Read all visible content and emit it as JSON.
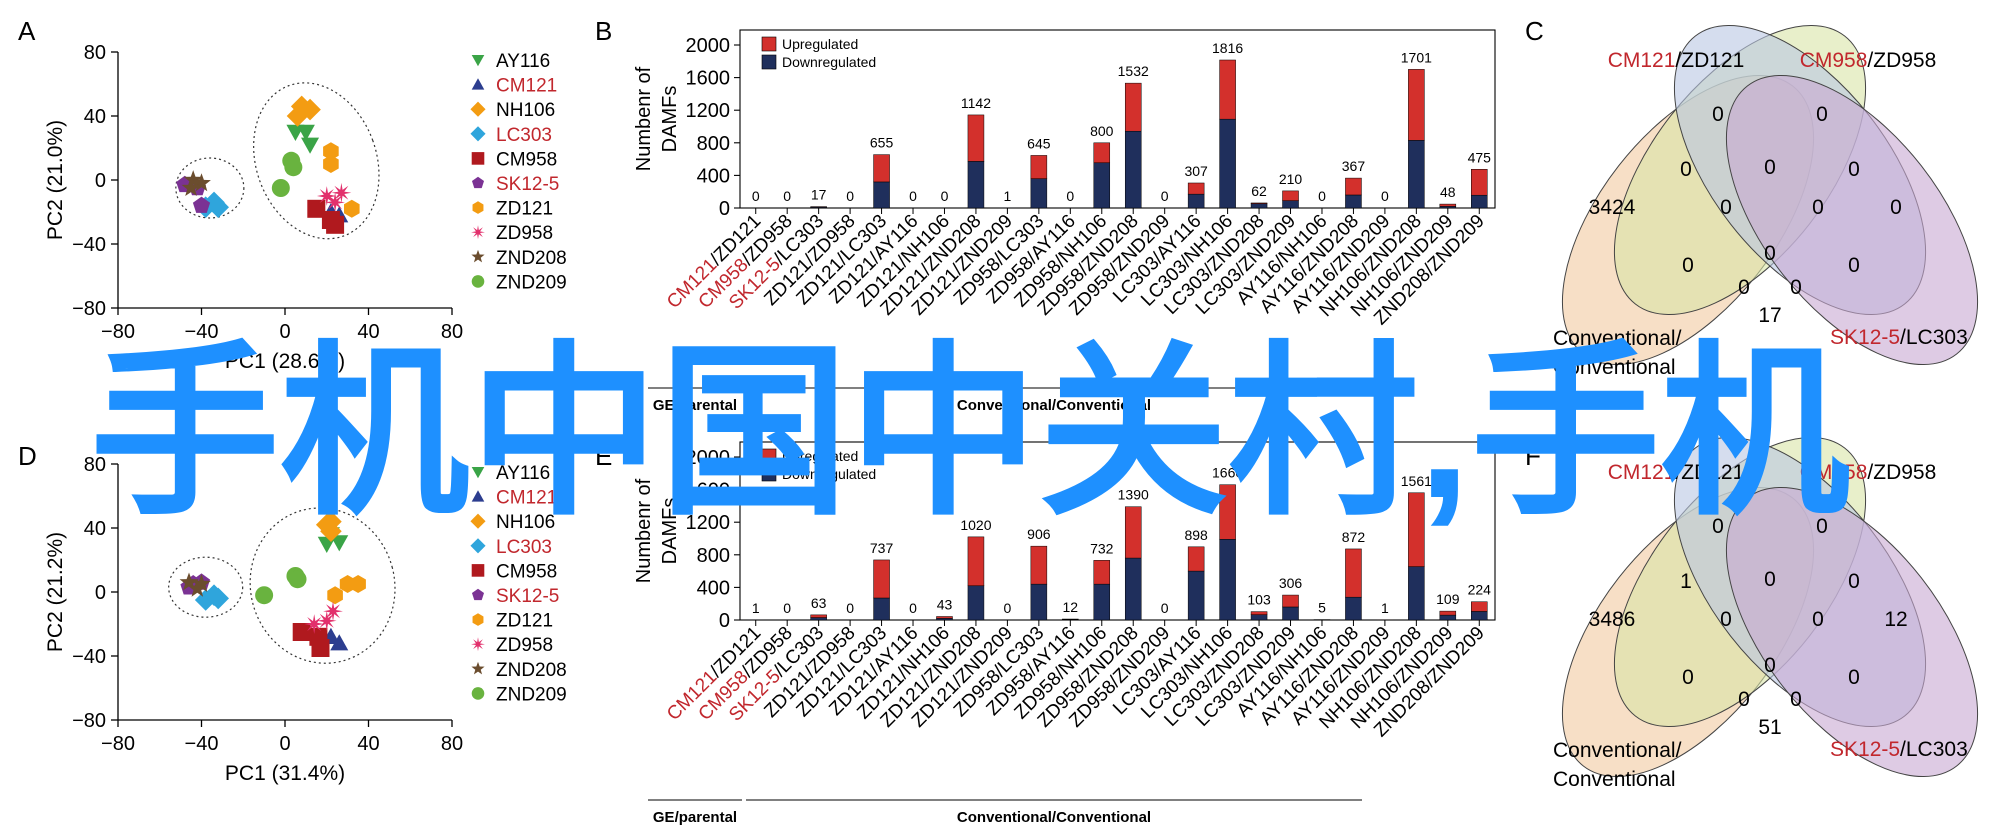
{
  "colors": {
    "upregulated": "#d3302c",
    "downregulated": "#1f2f5c",
    "red_label": "#c1272d",
    "watermark": "#1e90ff",
    "venn": [
      "#f2c9a0",
      "#d9e4a6",
      "#b9c6e2",
      "#c8a8d2"
    ]
  },
  "watermark": {
    "text": "手机中国中关村,手机"
  },
  "panels": {
    "A": {
      "label": "A",
      "xlabel": "PC1 (28.6%)",
      "ylabel": "PC2 (21.0%)",
      "xlim": [
        -80,
        80
      ],
      "ylim": [
        -80,
        80
      ],
      "xticks": [
        "−80",
        "−40",
        "0",
        "40",
        "80"
      ],
      "yticks": [
        "80",
        "40",
        "0",
        "−40",
        "−80"
      ]
    },
    "B": {
      "label": "B",
      "ylabel1": "Numbenr of",
      "ylabel2": "DAMFs",
      "yticks": [
        "2000",
        "1600",
        "1200",
        "800",
        "400",
        "0"
      ]
    },
    "C": {
      "label": "C"
    },
    "D": {
      "label": "D",
      "xlabel": "PC1 (31.4%)",
      "ylabel": "PC2 (21.2%)",
      "xlim": [
        -80,
        80
      ],
      "ylim": [
        -80,
        80
      ],
      "xticks": [
        "−80",
        "−40",
        "0",
        "40",
        "80"
      ],
      "yticks": [
        "80",
        "40",
        "0",
        "−40",
        "−80"
      ]
    },
    "E": {
      "label": "E",
      "ylabel1": "Numbenr of",
      "ylabel2": "DAMFs",
      "yticks": [
        "2000",
        "1600",
        "1200",
        "800",
        "400",
        "0"
      ]
    },
    "F": {
      "label": "F"
    }
  },
  "legend_pca": [
    {
      "name": "AY116",
      "marker": "triangle-down",
      "color": "#3aa447",
      "red": false
    },
    {
      "name": "CM121",
      "marker": "triangle-up",
      "color": "#2c3d8f",
      "red": true
    },
    {
      "name": "NH106",
      "marker": "diamond",
      "color": "#f39c12",
      "red": false
    },
    {
      "name": "LC303",
      "marker": "diamond",
      "color": "#2fa5dc",
      "red": true
    },
    {
      "name": "CM958",
      "marker": "square",
      "color": "#b0191e",
      "red": false
    },
    {
      "name": "SK12-5",
      "marker": "pentagon",
      "color": "#7b3294",
      "red": true
    },
    {
      "name": "ZD121",
      "marker": "hexagon",
      "color": "#f39c12",
      "red": false
    },
    {
      "name": "ZD958",
      "marker": "cross",
      "color": "#e2306c",
      "red": false
    },
    {
      "name": "ZND208",
      "marker": "star",
      "color": "#6b4d2e",
      "red": false
    },
    {
      "name": "ZND209",
      "marker": "circle",
      "color": "#69b33f",
      "red": false
    }
  ],
  "legend_bar": {
    "up": "Upregulated",
    "down": "Downregulated"
  },
  "bar_categories": [
    "CM121/ZD121",
    "CM958/ZD958",
    "SK12-5/LC303",
    "ZD121/ZD958",
    "ZD121/LC303",
    "ZD121/AY116",
    "ZD121/NH106",
    "ZD121/ZND208",
    "ZD121/ZND209",
    "ZD958/LC303",
    "ZD958/AY116",
    "ZD958/NH106",
    "ZD958/ZND208",
    "ZD958/ZND209",
    "LC303/AY116",
    "LC303/NH106",
    "LC303/ZND208",
    "LC303/ZND209",
    "AY116/NH106",
    "AY116/ZND208",
    "AY116/ZND209",
    "NH106/ZND208",
    "NH106/ZND209",
    "ZND208/ZND209"
  ],
  "bar_red_prefix": [
    {
      "index": 0,
      "red": "CM121",
      "rest": "/ZD121"
    },
    {
      "index": 1,
      "red": "CM958",
      "rest": "/ZD958"
    },
    {
      "index": 2,
      "red": "SK12-5",
      "rest": "/LC303"
    }
  ],
  "bar_groups": {
    "left": "GE/parental",
    "right": "Conventional/Conventional"
  },
  "venn_labels": {
    "top_left_red": "CM121",
    "top_left_rest": "/ZD121",
    "top_right_red": "CM958",
    "top_right_rest": "/ZD958",
    "bottom_left_1": "Conventional/",
    "bottom_left_2": "Conventional",
    "bottom_right_red": "SK12-5",
    "bottom_right_rest": "/LC303"
  },
  "chart_data": [
    {
      "panel": "A",
      "type": "scatter",
      "title": "",
      "xlabel": "PC1 (28.6%)",
      "ylabel": "PC2 (21.0%)",
      "xlim": [
        -80,
        80
      ],
      "ylim": [
        -80,
        80
      ],
      "series": [
        {
          "name": "AY116",
          "points": [
            [
              5,
              30
            ],
            [
              10,
              30
            ],
            [
              12,
              22
            ]
          ]
        },
        {
          "name": "CM121",
          "points": [
            [
              22,
              -20
            ],
            [
              26,
              -22
            ]
          ]
        },
        {
          "name": "NH106",
          "points": [
            [
              8,
              46
            ],
            [
              12,
              44
            ],
            [
              6,
              40
            ]
          ]
        },
        {
          "name": "LC303",
          "points": [
            [
              -38,
              -17
            ],
            [
              -32,
              -17
            ],
            [
              -34,
              -14
            ]
          ]
        },
        {
          "name": "CM958",
          "points": [
            [
              15,
              -18
            ],
            [
              22,
              -25
            ],
            [
              24,
              -28
            ]
          ]
        },
        {
          "name": "SK12-5",
          "points": [
            [
              -42,
              -5
            ],
            [
              -48,
              -3
            ],
            [
              -40,
              -16
            ]
          ]
        },
        {
          "name": "ZD121",
          "points": [
            [
              22,
              10
            ],
            [
              22,
              18
            ],
            [
              32,
              -18
            ]
          ]
        },
        {
          "name": "ZD958",
          "points": [
            [
              20,
              -10
            ],
            [
              24,
              -14
            ],
            [
              27,
              -8
            ]
          ]
        },
        {
          "name": "ZND208",
          "points": [
            [
              -44,
              0
            ],
            [
              -40,
              -2
            ],
            [
              -45,
              -5
            ]
          ]
        },
        {
          "name": "ZND209",
          "points": [
            [
              3,
              12
            ],
            [
              -2,
              -5
            ],
            [
              4,
              8
            ]
          ]
        }
      ]
    },
    {
      "panel": "B",
      "type": "bar",
      "title": "",
      "xlabel": "",
      "ylabel": "Numbenr of DAMFs",
      "ylim": [
        0,
        2000
      ],
      "categories": [
        "CM121/ZD121",
        "CM958/ZD958",
        "SK12-5/LC303",
        "ZD121/ZD958",
        "ZD121/LC303",
        "ZD121/AY116",
        "ZD121/NH106",
        "ZD121/ZND208",
        "ZD121/ZND209",
        "ZD958/LC303",
        "ZD958/AY116",
        "ZD958/NH106",
        "ZD958/ZND208",
        "ZD958/ZND209",
        "LC303/AY116",
        "LC303/NH106",
        "LC303/ZND208",
        "LC303/ZND209",
        "AY116/NH106",
        "AY116/ZND208",
        "AY116/ZND209",
        "NH106/ZND208",
        "NH106/ZND209",
        "ZND208/ZND209"
      ],
      "totals": [
        0,
        0,
        17,
        0,
        655,
        0,
        0,
        1142,
        1,
        645,
        0,
        800,
        1532,
        0,
        307,
        1816,
        62,
        210,
        0,
        367,
        0,
        1701,
        48,
        475
      ],
      "series": [
        {
          "name": "Upregulated",
          "values": [
            0,
            0,
            7,
            0,
            335,
            0,
            0,
            570,
            0,
            285,
            0,
            245,
            590,
            0,
            137,
            726,
            10,
            120,
            0,
            207,
            0,
            871,
            28,
            318
          ]
        },
        {
          "name": "Downregulated",
          "values": [
            0,
            0,
            10,
            0,
            320,
            0,
            0,
            572,
            1,
            360,
            0,
            555,
            942,
            0,
            170,
            1090,
            52,
            90,
            0,
            160,
            0,
            830,
            20,
            157
          ]
        }
      ]
    },
    {
      "panel": "C",
      "type": "venn",
      "title": "",
      "sets": [
        "CM121/ZD121",
        "CM958/ZD958",
        "Conventional/Conventional",
        "SK12-5/LC303"
      ],
      "values": [
        "0",
        "0",
        "0",
        "3424",
        "0",
        "0",
        "0",
        "0",
        "0",
        "0",
        "0",
        "0",
        "0",
        "17",
        "0"
      ]
    },
    {
      "panel": "D",
      "type": "scatter",
      "title": "",
      "xlabel": "PC1 (31.4%)",
      "ylabel": "PC2 (21.2%)",
      "xlim": [
        -80,
        80
      ],
      "ylim": [
        -80,
        80
      ],
      "series": [
        {
          "name": "AY116",
          "points": [
            [
              20,
              30
            ],
            [
              26,
              31
            ],
            [
              22,
              36
            ]
          ]
        },
        {
          "name": "CM121",
          "points": [
            [
              22,
              -28
            ],
            [
              26,
              -32
            ]
          ]
        },
        {
          "name": "NH106",
          "points": [
            [
              20,
              42
            ],
            [
              22,
              38
            ],
            [
              22,
              44
            ]
          ]
        },
        {
          "name": "LC303",
          "points": [
            [
              -38,
              -5
            ],
            [
              -34,
              -2
            ],
            [
              -32,
              -4
            ]
          ]
        },
        {
          "name": "CM958",
          "points": [
            [
              8,
              -25
            ],
            [
              16,
              -28
            ],
            [
              17,
              -35
            ]
          ]
        },
        {
          "name": "SK12-5",
          "points": [
            [
              -44,
              5
            ],
            [
              -46,
              3
            ],
            [
              -40,
              6
            ]
          ]
        },
        {
          "name": "ZD121",
          "points": [
            [
              24,
              -2
            ],
            [
              30,
              5
            ],
            [
              35,
              5
            ]
          ]
        },
        {
          "name": "ZD958",
          "points": [
            [
              14,
              -20
            ],
            [
              20,
              -18
            ],
            [
              23,
              -12
            ]
          ]
        },
        {
          "name": "ZND208",
          "points": [
            [
              -40,
              5
            ],
            [
              -46,
              6
            ],
            [
              -42,
              2
            ]
          ]
        },
        {
          "name": "ZND209",
          "points": [
            [
              5,
              10
            ],
            [
              -10,
              -2
            ],
            [
              6,
              8
            ]
          ]
        }
      ]
    },
    {
      "panel": "E",
      "type": "bar",
      "title": "",
      "xlabel": "",
      "ylabel": "Numbenr of DAMFs",
      "ylim": [
        0,
        2000
      ],
      "categories": [
        "CM121/ZD121",
        "CM958/ZD958",
        "SK12-5/LC303",
        "ZD121/ZD958",
        "ZD121/LC303",
        "ZD121/AY116",
        "ZD121/NH106",
        "ZD121/ZND208",
        "ZD121/ZND209",
        "ZD958/LC303",
        "ZD958/AY116",
        "ZD958/NH106",
        "ZD958/ZND208",
        "ZD958/ZND209",
        "LC303/AY116",
        "LC303/NH106",
        "LC303/ZND208",
        "LC303/ZND209",
        "AY116/NH106",
        "AY116/ZND208",
        "AY116/ZND209",
        "NH106/ZND208",
        "NH106/ZND209",
        "ZND208/ZND209"
      ],
      "totals": [
        1,
        0,
        63,
        0,
        737,
        0,
        43,
        1020,
        0,
        906,
        12,
        732,
        1390,
        0,
        898,
        1660,
        103,
        306,
        5,
        872,
        1,
        1561,
        109,
        224
      ],
      "series": [
        {
          "name": "Upregulated",
          "values": [
            0,
            0,
            33,
            0,
            467,
            0,
            23,
            600,
            0,
            466,
            6,
            292,
            630,
            0,
            298,
            670,
            38,
            146,
            3,
            592,
            1,
            906,
            49,
            119
          ]
        },
        {
          "name": "Downregulated",
          "values": [
            1,
            0,
            30,
            0,
            270,
            0,
            20,
            420,
            0,
            440,
            6,
            440,
            760,
            0,
            600,
            990,
            65,
            160,
            2,
            280,
            0,
            655,
            60,
            105
          ]
        }
      ]
    },
    {
      "panel": "F",
      "type": "venn",
      "title": "",
      "sets": [
        "CM121/ZD121",
        "CM958/ZD958",
        "Conventional/Conventional",
        "SK12-5/LC303"
      ],
      "values": [
        "0",
        "0",
        "1",
        "3486",
        "0",
        "0",
        "12",
        "0",
        "0",
        "0",
        "0",
        "0",
        "0",
        "51",
        "0"
      ]
    }
  ]
}
